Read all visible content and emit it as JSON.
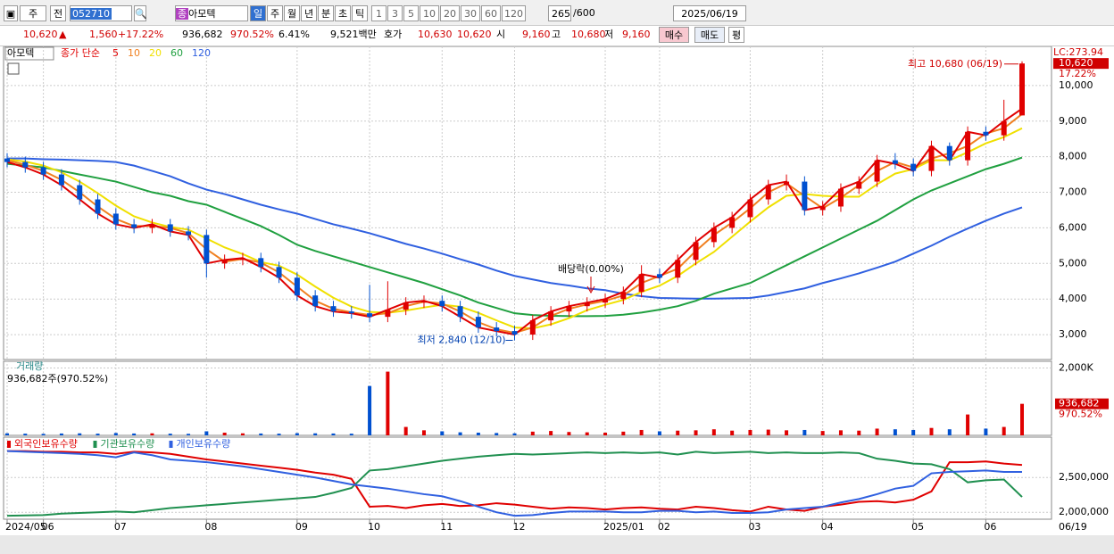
{
  "toolbar": {
    "market": "주",
    "prev": "전",
    "code": "052710",
    "name_icon": "종",
    "name": "아모텍",
    "periods": [
      "일",
      "주",
      "월",
      "년",
      "분",
      "초",
      "틱"
    ],
    "intervals": [
      "1",
      "3",
      "5",
      "10",
      "20",
      "30",
      "60",
      "120"
    ],
    "count": "265",
    "total": "/600",
    "date": "2025/06/19"
  },
  "info": {
    "price": "10,620",
    "arrow": "▲",
    "change": "1,560",
    "change_pct": "+17.22%",
    "volume": "936,682",
    "volume_pct": "970.52%",
    "turnover": "6.41%",
    "amount": "9,521백만",
    "quote_label": "호가",
    "ask": "10,630",
    "bid": "10,620",
    "open_label": "시",
    "open": "9,160",
    "high_label": "고",
    "high": "10,680",
    "low_label": "저",
    "low": "9,160",
    "buy": "매수",
    "sell": "매도",
    "avg": "평"
  },
  "chart_data": [
    {
      "type": "candlestick",
      "title": "아모텍",
      "legend_title": "종가 단순",
      "up_color": "#e00000",
      "down_color": "#0050d0",
      "open": [
        7950,
        7850,
        7700,
        7500,
        7200,
        6800,
        6400,
        6100,
        6000,
        6100,
        5900,
        5800,
        5000,
        5100,
        5150,
        4900,
        4600,
        4100,
        3800,
        3650,
        3600,
        3500,
        3700,
        3900,
        3950,
        3800,
        3500,
        3200,
        3100,
        3000,
        3400,
        3650,
        3800,
        3900,
        4000,
        4200,
        4700,
        4600,
        5100,
        5600,
        6000,
        6300,
        6800,
        7200,
        7300,
        6500,
        6600,
        7100,
        7300,
        7900,
        7800,
        7600,
        8300,
        7900,
        8700,
        8600,
        9160
      ],
      "high": [
        8100,
        8000,
        7850,
        7650,
        7350,
        6950,
        6550,
        6250,
        6250,
        6250,
        6050,
        5950,
        5250,
        5300,
        5300,
        5050,
        4750,
        4250,
        3950,
        3800,
        4400,
        4500,
        4050,
        4100,
        4100,
        3950,
        3650,
        3350,
        3250,
        3550,
        3800,
        3950,
        4050,
        4150,
        4350,
        4950,
        4850,
        5250,
        5750,
        6150,
        6450,
        6950,
        7350,
        7500,
        7450,
        6750,
        7250,
        7450,
        8050,
        8100,
        7950,
        8450,
        8400,
        8850,
        8850,
        9600,
        10680
      ],
      "low": [
        7700,
        7550,
        7350,
        7050,
        6650,
        6250,
        5950,
        5850,
        5850,
        5750,
        5650,
        4600,
        4850,
        4950,
        4750,
        4450,
        3950,
        3650,
        3500,
        3450,
        3350,
        3350,
        3550,
        3750,
        3650,
        3350,
        3050,
        2950,
        2840,
        2850,
        3250,
        3500,
        3650,
        3750,
        3850,
        4050,
        4450,
        4450,
        4950,
        5450,
        5850,
        6150,
        6650,
        7050,
        6350,
        6350,
        6450,
        6950,
        7150,
        7650,
        7450,
        7450,
        7750,
        7750,
        8450,
        8450,
        9160
      ],
      "close": [
        7850,
        7700,
        7500,
        7200,
        6800,
        6400,
        6100,
        6000,
        6100,
        5900,
        5800,
        5000,
        5100,
        5150,
        4900,
        4600,
        4100,
        3800,
        3650,
        3600,
        3500,
        3700,
        3900,
        3950,
        3800,
        3500,
        3200,
        3100,
        3000,
        3400,
        3650,
        3800,
        3900,
        4000,
        4200,
        4700,
        4600,
        5100,
        5600,
        6000,
        6300,
        6800,
        7200,
        7300,
        6500,
        6600,
        7100,
        7300,
        7900,
        7800,
        7600,
        8300,
        7900,
        8700,
        8600,
        9000,
        10620
      ],
      "series": [
        {
          "name": "5",
          "color": "#e00000",
          "values": [
            7850,
            7700,
            7500,
            7200,
            6800,
            6400,
            6100,
            6000,
            6100,
            5900,
            5800,
            5000,
            5100,
            5150,
            4900,
            4600,
            4100,
            3800,
            3650,
            3600,
            3500,
            3700,
            3900,
            3950,
            3800,
            3500,
            3200,
            3100,
            3000,
            3400,
            3650,
            3800,
            3900,
            4000,
            4200,
            4700,
            4600,
            5100,
            5600,
            6000,
            6300,
            6800,
            7200,
            7300,
            6500,
            6600,
            7100,
            7300,
            7900,
            7800,
            7600,
            8300,
            7900,
            8700,
            8600,
            9000,
            9350
          ]
        },
        {
          "name": "10",
          "color": "#f08020",
          "values": [
            7900,
            7775,
            7600,
            7350,
            7000,
            6600,
            6250,
            6050,
            6050,
            6000,
            5850,
            5400,
            5050,
            5125,
            5025,
            4750,
            4350,
            3950,
            3725,
            3625,
            3550,
            3600,
            3800,
            3925,
            3875,
            3650,
            3350,
            3150,
            3050,
            3200,
            3525,
            3725,
            3850,
            3950,
            4100,
            4450,
            4650,
            4850,
            5350,
            5800,
            6150,
            6550,
            7000,
            7250,
            6900,
            6550,
            6850,
            7200,
            7600,
            7850,
            7700,
            7950,
            8100,
            8300,
            8650,
            8800,
            9200
          ]
        },
        {
          "name": "20",
          "color": "#f0e000",
          "values": [
            7925,
            7862,
            7750,
            7562,
            7300,
            6975,
            6625,
            6325,
            6150,
            6025,
            5950,
            5700,
            5450,
            5262,
            5037,
            4937,
            4687,
            4350,
            4037,
            3787,
            3637,
            3612,
            3675,
            3762,
            3837,
            3787,
            3612,
            3400,
            3200,
            3175,
            3287,
            3462,
            3687,
            3837,
            3975,
            4200,
            4375,
            4650,
            5000,
            5325,
            5750,
            6175,
            6575,
            6900,
            6950,
            6900,
            6875,
            6875,
            7225,
            7525,
            7650,
            7900,
            7900,
            8125,
            8375,
            8550,
            8800
          ]
        },
        {
          "name": "60",
          "color": "#20a040",
          "values": [
            7800,
            7750,
            7700,
            7600,
            7500,
            7400,
            7300,
            7150,
            7000,
            6900,
            6750,
            6650,
            6450,
            6250,
            6050,
            5800,
            5525,
            5350,
            5200,
            5050,
            4900,
            4750,
            4600,
            4450,
            4275,
            4100,
            3900,
            3750,
            3600,
            3550,
            3530,
            3520,
            3520,
            3525,
            3560,
            3620,
            3700,
            3800,
            3950,
            4150,
            4300,
            4450,
            4700,
            4950,
            5200,
            5450,
            5700,
            5950,
            6200,
            6500,
            6800,
            7050,
            7250,
            7450,
            7650,
            7800,
            7975
          ]
        },
        {
          "name": "120",
          "color": "#3060e0",
          "values": [
            7950,
            7950,
            7930,
            7920,
            7900,
            7880,
            7850,
            7750,
            7600,
            7450,
            7250,
            7075,
            6950,
            6800,
            6650,
            6520,
            6400,
            6250,
            6100,
            5980,
            5850,
            5700,
            5550,
            5420,
            5275,
            5120,
            4970,
            4800,
            4650,
            4550,
            4450,
            4380,
            4300,
            4250,
            4150,
            4080,
            4030,
            4020,
            4010,
            4010,
            4020,
            4030,
            4100,
            4200,
            4300,
            4450,
            4580,
            4720,
            4880,
            5050,
            5275,
            5500,
            5750,
            5980,
            6200,
            6400,
            6575
          ]
        }
      ],
      "ylim": [
        2300,
        11100
      ],
      "yticks": [
        {
          "value": 3000,
          "label": "3,000"
        },
        {
          "value": 4000,
          "label": "4,000"
        },
        {
          "value": 5000,
          "label": "5,000"
        },
        {
          "value": 6000,
          "label": "6,000"
        },
        {
          "value": 7000,
          "label": "7,000"
        },
        {
          "value": 8000,
          "label": "8,000"
        },
        {
          "value": 9000,
          "label": "9,000"
        },
        {
          "value": 10000,
          "label": "10,000"
        }
      ],
      "grid": true,
      "lc_label": "LC:273.94",
      "current_label": "10,620",
      "change_label": "17.22%",
      "high_annotation": "최고 10,680 (06/19)",
      "low_annotation": "최저 2,840 (12/10)",
      "event_annotation": "배당락(0.00%)"
    },
    {
      "type": "bar",
      "title": "거래량",
      "subtitle": "936,682주(970.52%)",
      "up_color": "#e00000",
      "down_color": "#0050d0",
      "values": [
        60000,
        50000,
        45000,
        55000,
        60000,
        50000,
        70000,
        55000,
        60000,
        50000,
        45000,
        120000,
        80000,
        60000,
        55000,
        50000,
        65000,
        60000,
        55000,
        50000,
        1467000,
        1893000,
        250000,
        150000,
        120000,
        90000,
        80000,
        70000,
        60000,
        110000,
        130000,
        100000,
        90000,
        80000,
        110000,
        160000,
        120000,
        140000,
        150000,
        180000,
        140000,
        160000,
        170000,
        150000,
        160000,
        130000,
        150000,
        140000,
        200000,
        180000,
        160000,
        220000,
        180000,
        620000,
        200000,
        250000,
        936682
      ],
      "ylim": [
        0,
        2200000
      ],
      "yticks": [
        {
          "value": 2000000,
          "label": "2,000K"
        }
      ],
      "current_label": "936,682",
      "change_label": "970.52%"
    },
    {
      "type": "line",
      "categories": [
        "2024/05",
        null,
        "06",
        null,
        null,
        null,
        "07",
        null,
        null,
        null,
        null,
        "08",
        null,
        null,
        null,
        null,
        "09",
        null,
        null,
        null,
        "10",
        null,
        null,
        null,
        "11",
        null,
        null,
        null,
        "12",
        null,
        null,
        null,
        null,
        "2025/01",
        null,
        null,
        "02",
        null,
        null,
        null,
        null,
        "03",
        null,
        null,
        null,
        "04",
        null,
        null,
        null,
        null,
        "05",
        null,
        null,
        null,
        "06",
        null,
        null
      ],
      "x_end_label": "06/19",
      "series": [
        {
          "name": "외국인보유수량",
          "color": "#e00000",
          "values": [
            2880000,
            2880000,
            2870000,
            2870000,
            2860000,
            2860000,
            2840000,
            2870000,
            2860000,
            2840000,
            2800000,
            2760000,
            2730000,
            2700000,
            2670000,
            2640000,
            2610000,
            2570000,
            2540000,
            2480000,
            2080000,
            2090000,
            2060000,
            2100000,
            2120000,
            2090000,
            2100000,
            2130000,
            2110000,
            2080000,
            2050000,
            2070000,
            2060000,
            2040000,
            2060000,
            2070000,
            2050000,
            2040000,
            2080000,
            2060000,
            2030000,
            2010000,
            2080000,
            2040000,
            2020000,
            2080000,
            2110000,
            2150000,
            2160000,
            2140000,
            2180000,
            2300000,
            2720000,
            2720000,
            2730000,
            2700000,
            2680000
          ]
        },
        {
          "name": "기관보유수량",
          "color": "#209050",
          "values": [
            1950000,
            1955000,
            1960000,
            1980000,
            1990000,
            2000000,
            2010000,
            2000000,
            2030000,
            2060000,
            2080000,
            2100000,
            2120000,
            2140000,
            2160000,
            2180000,
            2200000,
            2220000,
            2280000,
            2350000,
            2600000,
            2620000,
            2660000,
            2700000,
            2740000,
            2770000,
            2800000,
            2820000,
            2840000,
            2830000,
            2840000,
            2850000,
            2860000,
            2850000,
            2860000,
            2850000,
            2860000,
            2830000,
            2870000,
            2850000,
            2860000,
            2870000,
            2850000,
            2860000,
            2850000,
            2850000,
            2860000,
            2850000,
            2770000,
            2740000,
            2700000,
            2690000,
            2620000,
            2430000,
            2460000,
            2470000,
            2220000
          ]
        },
        {
          "name": "개인보유수량",
          "color": "#3060e0",
          "values": [
            2880000,
            2870000,
            2860000,
            2850000,
            2840000,
            2820000,
            2790000,
            2860000,
            2820000,
            2760000,
            2740000,
            2720000,
            2690000,
            2660000,
            2620000,
            2580000,
            2540000,
            2500000,
            2450000,
            2400000,
            2370000,
            2340000,
            2300000,
            2260000,
            2230000,
            2160000,
            2080000,
            2000000,
            1950000,
            1960000,
            1990000,
            2010000,
            2010000,
            2010000,
            2000000,
            2000000,
            2020000,
            2020000,
            2000000,
            2010000,
            1990000,
            1990000,
            2000000,
            2040000,
            2060000,
            2080000,
            2140000,
            2190000,
            2260000,
            2340000,
            2380000,
            2560000,
            2580000,
            2590000,
            2600000,
            2580000,
            2580000
          ]
        }
      ],
      "ylim": [
        1900000,
        3080000
      ],
      "yticks": [
        {
          "value": 2000000,
          "label": "2,000,000"
        },
        {
          "value": 2500000,
          "label": "2,500,000"
        }
      ]
    }
  ]
}
